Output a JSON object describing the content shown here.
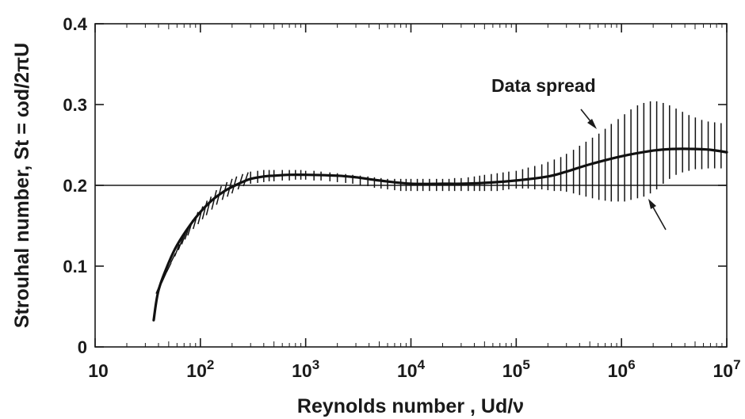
{
  "chart_data": {
    "type": "line",
    "title": "",
    "xlabel": "Reynolds number ,  Ud/ν",
    "ylabel": "Strouhal number, St = ωd/2πU",
    "xscale": "log",
    "xlim": [
      10,
      10000000
    ],
    "ylim": [
      0,
      0.4
    ],
    "grid": false,
    "x_ticks": [
      {
        "value": 10,
        "base": "10",
        "exp": ""
      },
      {
        "value": 100,
        "base": "10",
        "exp": "2"
      },
      {
        "value": 1000,
        "base": "10",
        "exp": "3"
      },
      {
        "value": 10000,
        "base": "10",
        "exp": "4"
      },
      {
        "value": 100000,
        "base": "10",
        "exp": "5"
      },
      {
        "value": 1000000,
        "base": "10",
        "exp": "6"
      },
      {
        "value": 10000000,
        "base": "10",
        "exp": "7"
      }
    ],
    "y_ticks": [
      {
        "value": 0,
        "label": "0"
      },
      {
        "value": 0.1,
        "label": "0.1"
      },
      {
        "value": 0.2,
        "label": "0.2"
      },
      {
        "value": 0.3,
        "label": "0.3"
      },
      {
        "value": 0.4,
        "label": "0.4"
      }
    ],
    "reference_line": {
      "y": 0.2
    },
    "series": [
      {
        "x": [
          36,
          40,
          50,
          60,
          80,
          100,
          130,
          170,
          200,
          250,
          300,
          400,
          500,
          700,
          1000,
          2000,
          3000,
          5000,
          10000,
          20000,
          30000,
          50000,
          100000,
          200000,
          300000,
          500000,
          1000000,
          2000000,
          3000000,
          5000000,
          7000000,
          10000000
        ],
        "y": [
          0.033,
          0.07,
          0.104,
          0.126,
          0.151,
          0.167,
          0.182,
          0.193,
          0.198,
          0.204,
          0.208,
          0.211,
          0.212,
          0.213,
          0.213,
          0.212,
          0.21,
          0.206,
          0.202,
          0.202,
          0.202,
          0.203,
          0.206,
          0.211,
          0.217,
          0.226,
          0.236,
          0.243,
          0.245,
          0.245,
          0.244,
          0.241
        ]
      }
    ],
    "data_spread": {
      "x": [
        40,
        45,
        50,
        55,
        60,
        65,
        70,
        75,
        80,
        90,
        100,
        110,
        120,
        135,
        150,
        170,
        190,
        210,
        240,
        270,
        300,
        350,
        400,
        450,
        500,
        600,
        700,
        800,
        900,
        1000,
        1200,
        1400,
        1700,
        2000,
        2400,
        2800,
        3300,
        3900,
        4500,
        5200,
        6000,
        7000,
        8000,
        9000,
        10000,
        11500,
        13000,
        15000,
        17500,
        20000,
        23000,
        26000,
        30000,
        35000,
        40000,
        45000,
        50000,
        58000,
        66000,
        75000,
        85000,
        100000,
        115000,
        130000,
        150000,
        175000,
        200000,
        230000,
        265000,
        300000,
        350000,
        400000,
        460000,
        530000,
        610000,
        700000,
        800000,
        930000,
        1070000,
        1230000,
        1420000,
        1630000,
        1880000,
        2160000,
        2490000,
        2860000,
        3300000,
        3800000,
        4370000,
        5030000,
        5790000,
        6660000,
        7670000,
        8830000
      ],
      "low": [
        0.066,
        0.079,
        0.092,
        0.104,
        0.112,
        0.12,
        0.127,
        0.133,
        0.138,
        0.146,
        0.152,
        0.158,
        0.163,
        0.17,
        0.176,
        0.182,
        0.186,
        0.19,
        0.195,
        0.199,
        0.202,
        0.203,
        0.204,
        0.205,
        0.205,
        0.206,
        0.206,
        0.207,
        0.207,
        0.207,
        0.206,
        0.206,
        0.205,
        0.204,
        0.203,
        0.202,
        0.2,
        0.199,
        0.197,
        0.196,
        0.195,
        0.194,
        0.193,
        0.193,
        0.193,
        0.193,
        0.193,
        0.193,
        0.193,
        0.193,
        0.193,
        0.193,
        0.193,
        0.193,
        0.193,
        0.193,
        0.193,
        0.193,
        0.193,
        0.194,
        0.195,
        0.196,
        0.196,
        0.196,
        0.195,
        0.195,
        0.194,
        0.193,
        0.193,
        0.192,
        0.19,
        0.188,
        0.186,
        0.184,
        0.182,
        0.181,
        0.18,
        0.18,
        0.18,
        0.182,
        0.184,
        0.186,
        0.19,
        0.195,
        0.202,
        0.208,
        0.213,
        0.216,
        0.218,
        0.22,
        0.22,
        0.221,
        0.221,
        0.221
      ],
      "high": [
        0.08,
        0.092,
        0.104,
        0.116,
        0.127,
        0.136,
        0.144,
        0.151,
        0.157,
        0.167,
        0.174,
        0.181,
        0.186,
        0.194,
        0.199,
        0.204,
        0.208,
        0.211,
        0.214,
        0.216,
        0.217,
        0.218,
        0.219,
        0.219,
        0.219,
        0.219,
        0.219,
        0.219,
        0.219,
        0.218,
        0.218,
        0.217,
        0.216,
        0.215,
        0.214,
        0.213,
        0.212,
        0.211,
        0.21,
        0.209,
        0.208,
        0.208,
        0.208,
        0.208,
        0.208,
        0.208,
        0.208,
        0.208,
        0.208,
        0.208,
        0.208,
        0.209,
        0.209,
        0.21,
        0.211,
        0.212,
        0.213,
        0.214,
        0.215,
        0.216,
        0.217,
        0.218,
        0.22,
        0.222,
        0.224,
        0.226,
        0.229,
        0.232,
        0.235,
        0.239,
        0.244,
        0.249,
        0.254,
        0.259,
        0.264,
        0.27,
        0.276,
        0.282,
        0.288,
        0.294,
        0.299,
        0.302,
        0.304,
        0.304,
        0.302,
        0.299,
        0.295,
        0.291,
        0.287,
        0.284,
        0.281,
        0.279,
        0.278,
        0.277
      ]
    },
    "annotations": [
      {
        "text": "Data spread"
      }
    ]
  }
}
